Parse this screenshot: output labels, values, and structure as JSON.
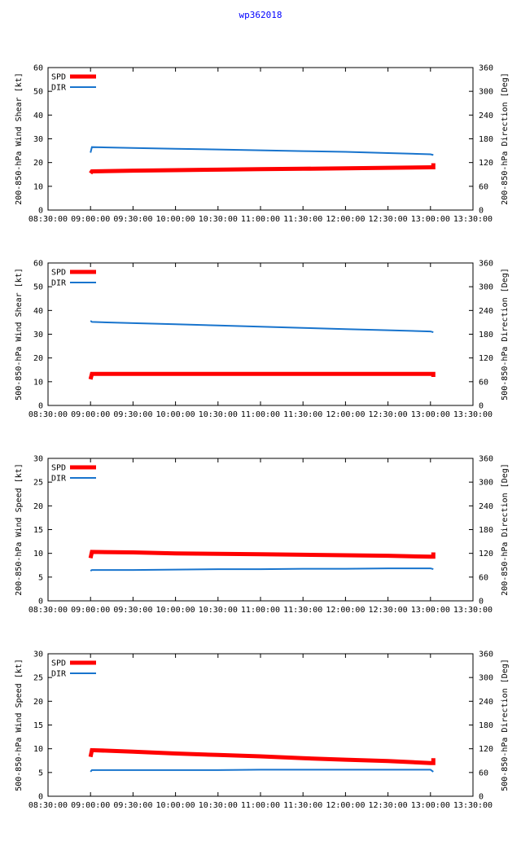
{
  "title": "wp362018",
  "colors": {
    "spd": "#ff0000",
    "dir": "#1874cd",
    "title": "#0000ff",
    "axis": "#000000"
  },
  "x_ticks": [
    "08:30:00",
    "09:00:00",
    "09:30:00",
    "10:00:00",
    "10:30:00",
    "11:00:00",
    "11:30:00",
    "12:00:00",
    "12:30:00",
    "13:00:00",
    "13:30:00"
  ],
  "chart_data": [
    {
      "type": "line",
      "title": "",
      "ylabel": "200-850-hPa Wind Shear [kt]",
      "y2label": "200-850-hPa Direction [Deg]",
      "ylim": [
        0,
        60
      ],
      "y2lim": [
        0,
        360
      ],
      "yticks": [
        "0",
        "10",
        "20",
        "30",
        "40",
        "50",
        "60"
      ],
      "y2ticks": [
        "0",
        "60",
        "120",
        "180",
        "240",
        "300",
        "360"
      ],
      "xlim_minutes": [
        510,
        810
      ],
      "legend": [
        {
          "label": "SPD"
        },
        {
          "label": "DIR"
        }
      ],
      "series": [
        {
          "name": "SPD",
          "axis": "left",
          "x": [
            540,
            541,
            570,
            600,
            630,
            660,
            690,
            720,
            750,
            780,
            782,
            782
          ],
          "values": [
            15.5,
            16.3,
            16.6,
            16.8,
            17.0,
            17.2,
            17.4,
            17.6,
            17.8,
            18.0,
            18.0,
            19.7
          ]
        },
        {
          "name": "DIR",
          "axis": "right",
          "x": [
            540,
            541,
            570,
            600,
            630,
            660,
            690,
            720,
            750,
            780,
            782,
            782
          ],
          "values": [
            145,
            159,
            157,
            155,
            153,
            151,
            149,
            147,
            144,
            141,
            139,
            139
          ]
        }
      ]
    },
    {
      "type": "line",
      "title": "",
      "ylabel": "500-850-hPa Wind Shear [kt]",
      "y2label": "500-850-hPa Direction [Deg]",
      "ylim": [
        0,
        60
      ],
      "y2lim": [
        0,
        360
      ],
      "yticks": [
        "0",
        "10",
        "20",
        "30",
        "40",
        "50",
        "60"
      ],
      "y2ticks": [
        "0",
        "60",
        "120",
        "180",
        "240",
        "300",
        "360"
      ],
      "xlim_minutes": [
        510,
        810
      ],
      "legend": [
        {
          "label": "SPD"
        },
        {
          "label": "DIR"
        }
      ],
      "series": [
        {
          "name": "SPD",
          "axis": "left",
          "x": [
            540,
            541,
            570,
            600,
            630,
            660,
            690,
            720,
            750,
            780,
            782,
            782
          ],
          "values": [
            11.0,
            13.3,
            13.3,
            13.3,
            13.3,
            13.3,
            13.3,
            13.3,
            13.3,
            13.3,
            13.3,
            12.0
          ]
        },
        {
          "name": "DIR",
          "axis": "right",
          "x": [
            540,
            541,
            570,
            600,
            630,
            660,
            690,
            720,
            750,
            780,
            782
          ],
          "values": [
            214,
            211,
            208,
            205,
            202,
            199,
            196,
            193,
            190,
            187,
            185
          ]
        }
      ]
    },
    {
      "type": "line",
      "title": "",
      "ylabel": "200-850-hPa Wind Speed [kt]",
      "y2label": "200-850-hPa Direction [Deg]",
      "ylim": [
        0,
        30
      ],
      "y2lim": [
        0,
        360
      ],
      "yticks": [
        "0",
        "5",
        "10",
        "15",
        "20",
        "25",
        "30"
      ],
      "y2ticks": [
        "0",
        "60",
        "120",
        "180",
        "240",
        "300",
        "360"
      ],
      "xlim_minutes": [
        510,
        810
      ],
      "legend": [
        {
          "label": "SPD"
        },
        {
          "label": "DIR"
        }
      ],
      "series": [
        {
          "name": "SPD",
          "axis": "left",
          "x": [
            540,
            541,
            570,
            600,
            630,
            660,
            690,
            720,
            750,
            780,
            782,
            782
          ],
          "values": [
            9.0,
            10.3,
            10.2,
            10.0,
            9.9,
            9.8,
            9.7,
            9.6,
            9.5,
            9.3,
            9.3,
            10.2
          ]
        },
        {
          "name": "DIR",
          "axis": "right",
          "x": [
            540,
            541,
            570,
            600,
            630,
            660,
            690,
            720,
            750,
            780,
            782
          ],
          "values": [
            76,
            78,
            78,
            79,
            80,
            80,
            81,
            81,
            82,
            82,
            80
          ]
        }
      ]
    },
    {
      "type": "line",
      "title": "",
      "ylabel": "500-850-hPa Wind Speed [kt]",
      "y2label": "500-850-hPa Direction [Deg]",
      "ylim": [
        0,
        30
      ],
      "y2lim": [
        0,
        360
      ],
      "yticks": [
        "0",
        "5",
        "10",
        "15",
        "20",
        "25",
        "30"
      ],
      "y2ticks": [
        "0",
        "60",
        "120",
        "180",
        "240",
        "300",
        "360"
      ],
      "xlim_minutes": [
        510,
        810
      ],
      "legend": [
        {
          "label": "SPD"
        },
        {
          "label": "DIR"
        }
      ],
      "series": [
        {
          "name": "SPD",
          "axis": "left",
          "x": [
            540,
            541,
            570,
            600,
            630,
            660,
            690,
            720,
            750,
            780,
            782,
            782
          ],
          "values": [
            8.3,
            9.7,
            9.4,
            9.0,
            8.7,
            8.4,
            8.0,
            7.7,
            7.4,
            7.0,
            7.0,
            8.0
          ]
        },
        {
          "name": "DIR",
          "axis": "right",
          "x": [
            540,
            541,
            570,
            600,
            630,
            660,
            690,
            720,
            750,
            780,
            782
          ],
          "values": [
            62,
            66,
            66,
            66,
            66,
            67,
            67,
            67,
            67,
            67,
            62
          ]
        }
      ]
    }
  ]
}
